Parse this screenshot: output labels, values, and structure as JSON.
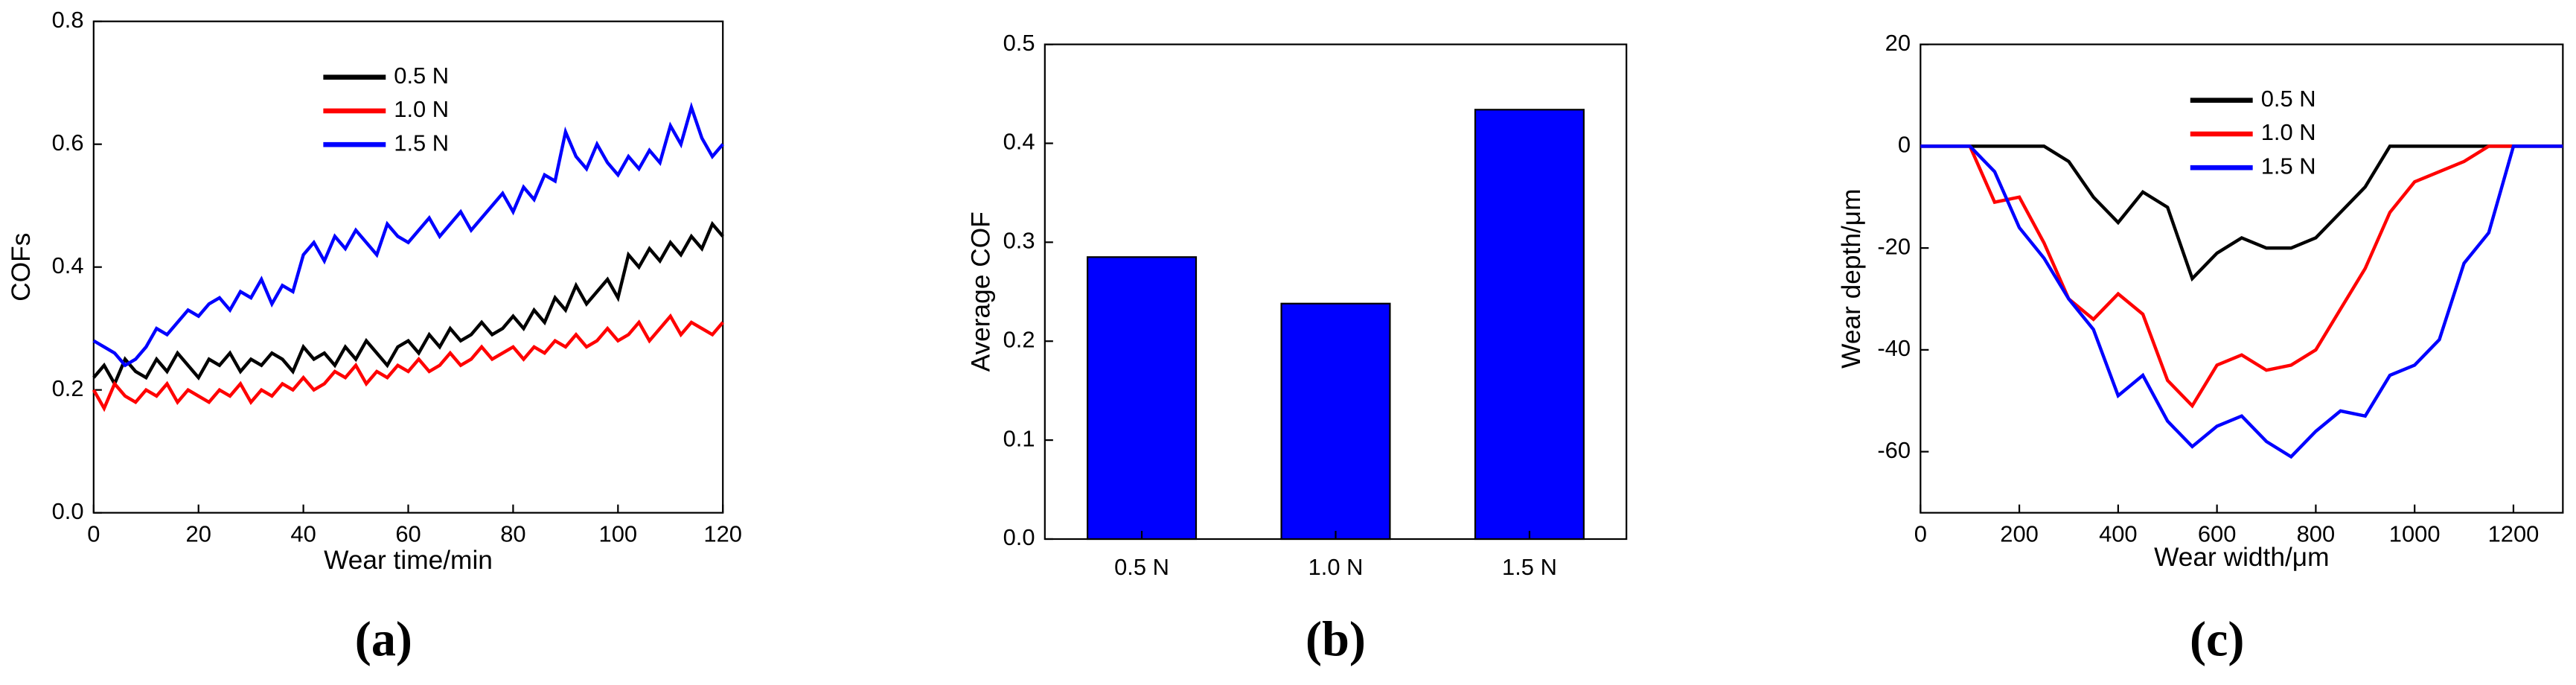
{
  "chart_data": [
    {
      "type": "line",
      "caption": "(a)",
      "xlabel": "Wear time/min",
      "ylabel": "COFs",
      "x": [
        0,
        2,
        4,
        6,
        8,
        10,
        12,
        14,
        16,
        18,
        20,
        22,
        24,
        26,
        28,
        30,
        32,
        34,
        36,
        38,
        40,
        42,
        44,
        46,
        48,
        50,
        52,
        54,
        56,
        58,
        60,
        62,
        64,
        66,
        68,
        70,
        72,
        74,
        76,
        78,
        80,
        82,
        84,
        86,
        88,
        90,
        92,
        94,
        96,
        98,
        100,
        102,
        104,
        106,
        108,
        110,
        112,
        114,
        116,
        118,
        120
      ],
      "series": [
        {
          "name": "0.5 N",
          "color": "#000000",
          "values": [
            0.22,
            0.24,
            0.21,
            0.25,
            0.23,
            0.22,
            0.25,
            0.23,
            0.26,
            0.24,
            0.22,
            0.25,
            0.24,
            0.26,
            0.23,
            0.25,
            0.24,
            0.26,
            0.25,
            0.23,
            0.27,
            0.25,
            0.26,
            0.24,
            0.27,
            0.25,
            0.28,
            0.26,
            0.24,
            0.27,
            0.28,
            0.26,
            0.29,
            0.27,
            0.3,
            0.28,
            0.29,
            0.31,
            0.29,
            0.3,
            0.32,
            0.3,
            0.33,
            0.31,
            0.35,
            0.33,
            0.37,
            0.34,
            0.36,
            0.38,
            0.35,
            0.42,
            0.4,
            0.43,
            0.41,
            0.44,
            0.42,
            0.45,
            0.43,
            0.47,
            0.45
          ]
        },
        {
          "name": "1.0 N",
          "color": "#ff0000",
          "values": [
            0.2,
            0.17,
            0.21,
            0.19,
            0.18,
            0.2,
            0.19,
            0.21,
            0.18,
            0.2,
            0.19,
            0.18,
            0.2,
            0.19,
            0.21,
            0.18,
            0.2,
            0.19,
            0.21,
            0.2,
            0.22,
            0.2,
            0.21,
            0.23,
            0.22,
            0.24,
            0.21,
            0.23,
            0.22,
            0.24,
            0.23,
            0.25,
            0.23,
            0.24,
            0.26,
            0.24,
            0.25,
            0.27,
            0.25,
            0.26,
            0.27,
            0.25,
            0.27,
            0.26,
            0.28,
            0.27,
            0.29,
            0.27,
            0.28,
            0.3,
            0.28,
            0.29,
            0.31,
            0.28,
            0.3,
            0.32,
            0.29,
            0.31,
            0.3,
            0.29,
            0.31
          ]
        },
        {
          "name": "1.5 N",
          "color": "#0000ff",
          "values": [
            0.28,
            0.27,
            0.26,
            0.24,
            0.25,
            0.27,
            0.3,
            0.29,
            0.31,
            0.33,
            0.32,
            0.34,
            0.35,
            0.33,
            0.36,
            0.35,
            0.38,
            0.34,
            0.37,
            0.36,
            0.42,
            0.44,
            0.41,
            0.45,
            0.43,
            0.46,
            0.44,
            0.42,
            0.47,
            0.45,
            0.44,
            0.46,
            0.48,
            0.45,
            0.47,
            0.49,
            0.46,
            0.48,
            0.5,
            0.52,
            0.49,
            0.53,
            0.51,
            0.55,
            0.54,
            0.62,
            0.58,
            0.56,
            0.6,
            0.57,
            0.55,
            0.58,
            0.56,
            0.59,
            0.57,
            0.63,
            0.6,
            0.66,
            0.61,
            0.58,
            0.6
          ]
        }
      ],
      "xlim": [
        0,
        120
      ],
      "ylim": [
        0,
        0.8
      ],
      "xticks": [
        0,
        20,
        40,
        60,
        80,
        100,
        120
      ],
      "yticks": [
        {
          "value": 0,
          "label": "0.0"
        },
        0.2,
        0.4,
        0.6,
        0.8
      ],
      "legend": "upper center"
    },
    {
      "type": "bar",
      "caption": "(b)",
      "ylabel": "Average  COF",
      "categories": [
        "0.5 N",
        "1.0 N",
        "1.5 N"
      ],
      "values": [
        0.285,
        0.238,
        0.434
      ],
      "color": "#0000ff",
      "ylim": [
        0,
        0.5
      ],
      "yticks": [
        {
          "value": 0,
          "label": "0.0"
        },
        0.1,
        0.2,
        0.3,
        0.4,
        0.5
      ]
    },
    {
      "type": "line",
      "caption": "(c)",
      "xlabel": "Wear width/μm",
      "ylabel": "Wear depth/μm",
      "x": [
        0,
        50,
        100,
        150,
        200,
        250,
        300,
        350,
        400,
        450,
        500,
        550,
        600,
        650,
        700,
        750,
        800,
        850,
        900,
        950,
        1000,
        1050,
        1100,
        1150,
        1200,
        1250,
        1300
      ],
      "series": [
        {
          "name": "0.5 N",
          "color": "#000000",
          "values": [
            0,
            0,
            0,
            0,
            0,
            0,
            -3,
            -10,
            -15,
            -9,
            -12,
            -26,
            -21,
            -18,
            -20,
            -20,
            -18,
            -13,
            -8,
            0,
            0,
            0,
            0,
            0,
            0,
            0,
            0
          ]
        },
        {
          "name": "1.0 N",
          "color": "#ff0000",
          "values": [
            0,
            0,
            0,
            -11,
            -10,
            -19,
            -30,
            -34,
            -29,
            -33,
            -46,
            -51,
            -43,
            -41,
            -44,
            -43,
            -40,
            -32,
            -24,
            -13,
            -7,
            -5,
            -3,
            0,
            0,
            0,
            0
          ]
        },
        {
          "name": "1.5 N",
          "color": "#0000ff",
          "values": [
            0,
            0,
            0,
            -5,
            -16,
            -22,
            -30,
            -36,
            -49,
            -45,
            -54,
            -59,
            -55,
            -53,
            -58,
            -61,
            -56,
            -52,
            -53,
            -45,
            -43,
            -38,
            -23,
            -17,
            0,
            0,
            0
          ]
        }
      ],
      "xlim": [
        0,
        1300
      ],
      "ylim": [
        -72,
        20
      ],
      "xticks": [
        0,
        200,
        400,
        600,
        800,
        1000,
        1200
      ],
      "yticks": [
        -60,
        -40,
        -20,
        0,
        20
      ],
      "legend": "upper center"
    }
  ]
}
